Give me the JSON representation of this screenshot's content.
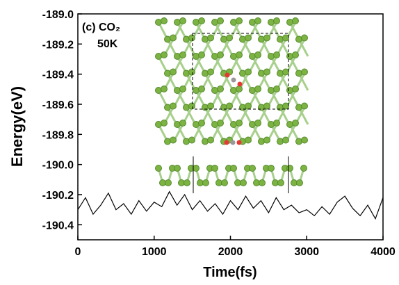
{
  "chart_data": {
    "type": "line",
    "xlabel": "Time(fs)",
    "ylabel": "Energy(eV)",
    "annotations": [
      "(c) CO₂",
      "50K"
    ],
    "x": [
      0,
      100,
      200,
      300,
      400,
      500,
      600,
      700,
      800,
      900,
      1000,
      1100,
      1200,
      1300,
      1400,
      1500,
      1600,
      1700,
      1800,
      1900,
      2000,
      2100,
      2200,
      2300,
      2400,
      2500,
      2600,
      2700,
      2800,
      2900,
      3000,
      3100,
      3200,
      3300,
      3400,
      3500,
      3600,
      3700,
      3800,
      3900,
      4000
    ],
    "series": [
      {
        "color": "#000000",
        "values": [
          -190.3,
          -190.22,
          -190.33,
          -190.27,
          -190.19,
          -190.3,
          -190.26,
          -190.33,
          -190.24,
          -190.31,
          -190.25,
          -190.28,
          -190.18,
          -190.27,
          -190.2,
          -190.3,
          -190.24,
          -190.31,
          -190.26,
          -190.33,
          -190.24,
          -190.3,
          -190.21,
          -190.29,
          -190.24,
          -190.32,
          -190.22,
          -190.3,
          -190.27,
          -190.32,
          -190.3,
          -190.34,
          -190.28,
          -190.33,
          -190.25,
          -190.21,
          -190.29,
          -190.34,
          -190.27,
          -190.36,
          -190.22
        ]
      }
    ],
    "xlim": [
      0,
      4000
    ],
    "xticks": [
      0,
      1000,
      2000,
      3000,
      4000
    ],
    "ylim": [
      -190.5,
      -189.0
    ],
    "yticks": [
      {
        "value": -189,
        "label": "-189.0"
      },
      -189.2,
      -189.4,
      -189.6,
      -189.8,
      {
        "value": -190,
        "label": "-190.0"
      },
      -190.2,
      -190.4
    ]
  }
}
